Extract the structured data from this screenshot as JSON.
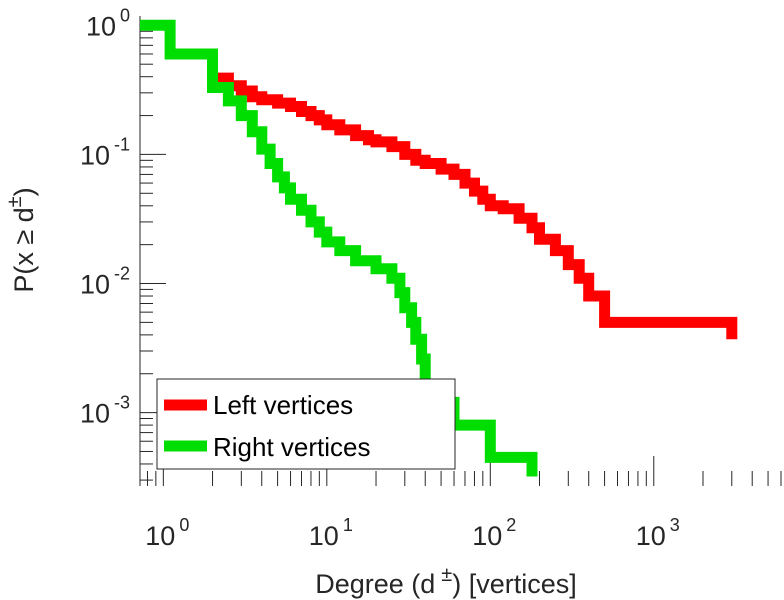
{
  "chart_data": {
    "type": "line",
    "xlabel": "Degree (d ±) [vertices]",
    "ylabel": "P(x ≥ d±)",
    "x_scale": "log",
    "y_scale": "log",
    "xlim": [
      0.72,
      6000
    ],
    "ylim": [
      0.00027,
      1.1
    ],
    "x_ticks": [
      {
        "value": 1,
        "base": "10",
        "exp": "0"
      },
      {
        "value": 10,
        "base": "10",
        "exp": "1"
      },
      {
        "value": 100,
        "base": "10",
        "exp": "2"
      },
      {
        "value": 1000,
        "base": "10",
        "exp": "3"
      }
    ],
    "y_ticks": [
      {
        "value": 1,
        "base": "10",
        "exp": "0"
      },
      {
        "value": 0.1,
        "base": "10",
        "exp": "-1"
      },
      {
        "value": 0.01,
        "base": "10",
        "exp": "-2"
      },
      {
        "value": 0.001,
        "base": "10",
        "exp": "-3"
      }
    ],
    "grid": false,
    "legend_position": "bottom-left",
    "step": true,
    "series": [
      {
        "name": "Left vertices",
        "color": "#ff0000",
        "x": [
          2,
          2.5,
          3,
          3.5,
          4,
          5,
          6,
          7,
          8,
          9,
          10,
          12,
          15,
          18,
          20,
          25,
          30,
          35,
          40,
          50,
          60,
          70,
          80,
          90,
          100,
          120,
          150,
          180,
          200,
          250,
          300,
          350,
          400,
          500,
          3000
        ],
        "y": [
          0.39,
          0.34,
          0.31,
          0.28,
          0.265,
          0.25,
          0.235,
          0.215,
          0.2,
          0.185,
          0.17,
          0.155,
          0.14,
          0.13,
          0.125,
          0.115,
          0.1,
          0.09,
          0.085,
          0.077,
          0.07,
          0.06,
          0.052,
          0.045,
          0.04,
          0.038,
          0.032,
          0.027,
          0.022,
          0.018,
          0.014,
          0.011,
          0.008,
          0.005,
          0.0037
        ]
      },
      {
        "name": "Right vertices",
        "color": "#00dd00",
        "x": [
          0.72,
          1.1,
          2,
          2.5,
          3,
          3.5,
          4,
          4.5,
          5,
          5.5,
          6,
          7,
          8,
          9,
          10,
          12,
          15,
          20,
          25,
          28,
          30,
          33,
          35,
          38,
          40,
          60,
          100,
          180
        ],
        "y": [
          1,
          0.6,
          0.33,
          0.26,
          0.2,
          0.15,
          0.11,
          0.085,
          0.067,
          0.055,
          0.045,
          0.037,
          0.03,
          0.025,
          0.021,
          0.018,
          0.015,
          0.013,
          0.011,
          0.0085,
          0.0065,
          0.005,
          0.0037,
          0.0026,
          0.0012,
          0.0008,
          0.00045,
          0.00032
        ]
      }
    ]
  }
}
